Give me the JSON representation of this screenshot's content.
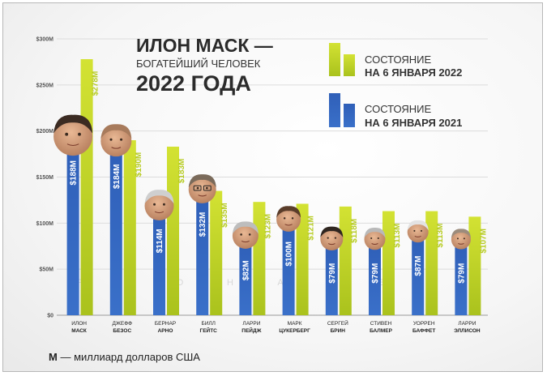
{
  "title": {
    "line1": "ИЛОН МАСК —",
    "line2": "БОГАТЕЙШИЙ ЧЕЛОВЕК",
    "line3": "2022 ГОДА"
  },
  "legend": [
    {
      "line1": "СОСТОЯНИЕ",
      "line2": "НА 6 ЯНВАРЯ 2022",
      "color": "#b7cc22"
    },
    {
      "line1": "СОСТОЯНИЕ",
      "line2": "НА 6 ЯНВАРЯ 2021",
      "color": "#2f5fb8"
    }
  ],
  "footnote": {
    "bold": "M",
    "text": " — миллиард долларов США"
  },
  "watermark": [
    "P",
    "O",
    "O",
    "H",
    "A",
    "N",
    "E",
    "T"
  ],
  "colors": {
    "blue": "#2f5fb8",
    "green": "#b7cc22"
  },
  "chart_data": {
    "type": "bar",
    "title": "ИЛОН МАСК — БОГАТЕЙШИЙ ЧЕЛОВЕК 2022 ГОДА",
    "ylim": [
      0,
      300
    ],
    "ytick_values": [
      0,
      50,
      100,
      150,
      200,
      250,
      300
    ],
    "yticks": [
      "$0",
      "$50M",
      "$100M",
      "$150M",
      "$200M",
      "$250M",
      "$300M"
    ],
    "grid": true,
    "legend_position": "top-right",
    "categories": [
      [
        "ИЛОН",
        "МАСК"
      ],
      [
        "ДЖЕФФ",
        "БЕЗОС"
      ],
      [
        "БЕРНАР",
        "АРНО"
      ],
      [
        "БИЛЛ",
        "ГЕЙТС"
      ],
      [
        "ЛАРРИ",
        "ПЕЙДЖ"
      ],
      [
        "МАРК",
        "ЦУКЕРБЕРГ"
      ],
      [
        "СЕРГЕЙ",
        "БРИН"
      ],
      [
        "СТИВЕН",
        "БАЛМЕР"
      ],
      [
        "УОРРЕН",
        "БАФФЕТ"
      ],
      [
        "ЛАРРИ",
        "ЭЛЛИСОН"
      ]
    ],
    "series": [
      {
        "name": "СОСТОЯНИЕ НА 6 ЯНВАРЯ 2021",
        "color": "#2f5fb8",
        "values": [
          188,
          184,
          114,
          132,
          82,
          100,
          79,
          79,
          87,
          79
        ],
        "labels": [
          "$188M",
          "$184M",
          "$114M",
          "$132M",
          "$82M",
          "$100M",
          "$79M",
          "$79M",
          "$87M",
          "$79M"
        ]
      },
      {
        "name": "СОСТОЯНИЕ НА 6 ЯНВАРЯ 2022",
        "color": "#b7cc22",
        "values": [
          278,
          190,
          183,
          135,
          123,
          121,
          118,
          113,
          113,
          107
        ],
        "labels": [
          "$278M",
          "$190M",
          "$183M",
          "$135M",
          "$123M",
          "$121M",
          "$118M",
          "$113M",
          "$113M",
          "$107M"
        ]
      }
    ]
  }
}
